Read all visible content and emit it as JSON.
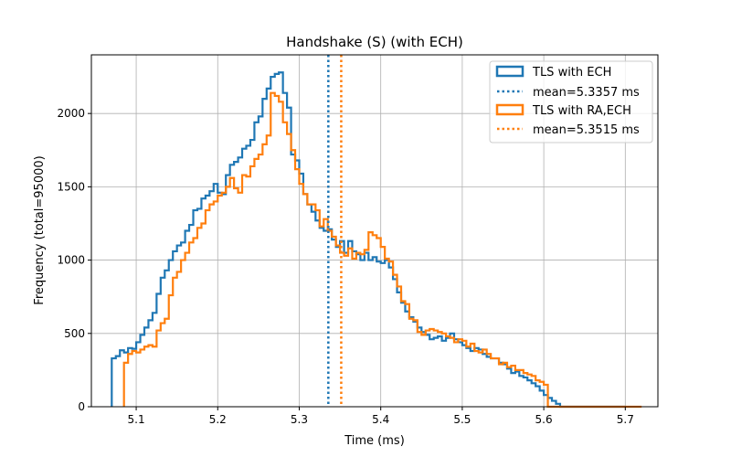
{
  "chart_data": {
    "type": "histogram-step",
    "title": "Handshake (S) (with ECH)",
    "xlabel": "Time (ms)",
    "ylabel": "Frequency (total=95000)",
    "xlim": [
      5.045,
      5.74
    ],
    "ylim": [
      0,
      2400
    ],
    "xticks": [
      5.1,
      5.2,
      5.3,
      5.4,
      5.5,
      5.6,
      5.7
    ],
    "yticks": [
      0,
      500,
      1000,
      1500,
      2000
    ],
    "grid": true,
    "legend": "top-right",
    "series": [
      {
        "name": "TLS with ECH",
        "color": "#1f77b4",
        "edges": [
          5.07,
          5.075,
          5.08,
          5.085,
          5.09,
          5.095,
          5.1,
          5.105,
          5.11,
          5.115,
          5.12,
          5.125,
          5.13,
          5.135,
          5.14,
          5.145,
          5.15,
          5.155,
          5.16,
          5.165,
          5.17,
          5.175,
          5.18,
          5.185,
          5.19,
          5.195,
          5.2,
          5.205,
          5.21,
          5.215,
          5.22,
          5.225,
          5.23,
          5.235,
          5.24,
          5.245,
          5.25,
          5.255,
          5.26,
          5.265,
          5.27,
          5.275,
          5.28,
          5.285,
          5.29,
          5.295,
          5.3,
          5.305,
          5.31,
          5.315,
          5.32,
          5.325,
          5.33,
          5.335,
          5.34,
          5.345,
          5.35,
          5.355,
          5.36,
          5.365,
          5.37,
          5.375,
          5.38,
          5.385,
          5.39,
          5.395,
          5.4,
          5.405,
          5.41,
          5.415,
          5.42,
          5.425,
          5.43,
          5.435,
          5.44,
          5.445,
          5.45,
          5.455,
          5.46,
          5.465,
          5.47,
          5.475,
          5.48,
          5.485,
          5.49,
          5.495,
          5.5,
          5.505,
          5.51,
          5.515,
          5.52,
          5.525,
          5.53,
          5.535,
          5.54,
          5.545,
          5.55,
          5.555,
          5.56,
          5.565,
          5.57,
          5.575,
          5.58,
          5.585,
          5.59,
          5.595,
          5.6,
          5.605,
          5.61,
          5.615,
          5.62,
          5.625,
          5.63,
          5.635,
          5.64,
          5.645,
          5.65,
          5.655,
          5.66,
          5.665,
          5.67,
          5.675,
          5.68,
          5.685,
          5.69,
          5.695,
          5.7
        ],
        "counts": [
          330,
          345,
          385,
          370,
          400,
          395,
          440,
          490,
          540,
          590,
          640,
          770,
          880,
          930,
          1000,
          1060,
          1100,
          1120,
          1200,
          1240,
          1340,
          1350,
          1420,
          1440,
          1470,
          1520,
          1460,
          1450,
          1580,
          1650,
          1670,
          1700,
          1760,
          1780,
          1820,
          1940,
          1980,
          2100,
          2170,
          2250,
          2270,
          2280,
          2140,
          2040,
          1720,
          1680,
          1590,
          1450,
          1380,
          1330,
          1270,
          1220,
          1200,
          1210,
          1140,
          1090,
          1130,
          1050,
          1130,
          1060,
          1040,
          1000,
          1050,
          1000,
          1020,
          990,
          980,
          1000,
          950,
          870,
          780,
          710,
          650,
          610,
          580,
          540,
          510,
          490,
          460,
          470,
          480,
          450,
          470,
          500,
          460,
          440,
          420,
          400,
          380,
          400,
          390,
          360,
          340,
          330,
          330,
          300,
          290,
          260,
          230,
          240,
          210,
          200,
          180,
          160,
          140,
          110,
          80,
          60,
          40,
          20,
          0,
          0,
          0,
          0,
          0,
          0,
          0,
          0,
          0,
          0,
          0,
          0,
          0,
          0,
          0,
          0
        ]
      },
      {
        "name": "TLS with RA,ECH",
        "color": "#ff7f0e",
        "edges": [
          5.085,
          5.09,
          5.095,
          5.1,
          5.105,
          5.11,
          5.115,
          5.12,
          5.125,
          5.13,
          5.135,
          5.14,
          5.145,
          5.15,
          5.155,
          5.16,
          5.165,
          5.17,
          5.175,
          5.18,
          5.185,
          5.19,
          5.195,
          5.2,
          5.205,
          5.21,
          5.215,
          5.22,
          5.225,
          5.23,
          5.235,
          5.24,
          5.245,
          5.25,
          5.255,
          5.26,
          5.265,
          5.27,
          5.275,
          5.28,
          5.285,
          5.29,
          5.295,
          5.3,
          5.305,
          5.31,
          5.315,
          5.32,
          5.325,
          5.33,
          5.335,
          5.34,
          5.345,
          5.35,
          5.355,
          5.36,
          5.365,
          5.37,
          5.375,
          5.38,
          5.385,
          5.39,
          5.395,
          5.4,
          5.405,
          5.41,
          5.415,
          5.42,
          5.425,
          5.43,
          5.435,
          5.44,
          5.445,
          5.45,
          5.455,
          5.46,
          5.465,
          5.47,
          5.475,
          5.48,
          5.485,
          5.49,
          5.495,
          5.5,
          5.505,
          5.51,
          5.515,
          5.52,
          5.525,
          5.53,
          5.535,
          5.54,
          5.545,
          5.55,
          5.555,
          5.56,
          5.565,
          5.57,
          5.575,
          5.58,
          5.585,
          5.59,
          5.595,
          5.6,
          5.605,
          5.61,
          5.615,
          5.62,
          5.625,
          5.63,
          5.635,
          5.64,
          5.645,
          5.65,
          5.655,
          5.66,
          5.665,
          5.67,
          5.675,
          5.68,
          5.685,
          5.69,
          5.695,
          5.7,
          5.705,
          5.71,
          5.715,
          5.72
        ],
        "counts": [
          300,
          360,
          380,
          370,
          390,
          410,
          420,
          410,
          520,
          570,
          600,
          760,
          880,
          920,
          1000,
          1050,
          1120,
          1150,
          1220,
          1250,
          1340,
          1380,
          1400,
          1440,
          1460,
          1500,
          1560,
          1490,
          1460,
          1580,
          1570,
          1640,
          1690,
          1720,
          1790,
          1850,
          2140,
          2120,
          2080,
          1940,
          1860,
          1750,
          1620,
          1520,
          1450,
          1380,
          1380,
          1340,
          1230,
          1280,
          1200,
          1160,
          1100,
          1050,
          1030,
          1080,
          1010,
          1050,
          1040,
          1070,
          1190,
          1170,
          1150,
          1090,
          1010,
          990,
          900,
          820,
          720,
          700,
          600,
          590,
          510,
          490,
          520,
          530,
          520,
          510,
          500,
          480,
          470,
          440,
          460,
          450,
          410,
          430,
          380,
          370,
          390,
          360,
          330,
          330,
          290,
          300,
          270,
          280,
          250,
          250,
          230,
          220,
          210,
          180,
          170,
          150,
          0,
          0,
          0,
          0,
          0,
          0,
          0,
          0,
          0,
          0,
          0,
          0,
          0,
          0,
          0,
          0,
          0,
          0,
          0,
          0,
          0,
          0,
          0,
          0
        ]
      }
    ],
    "means": [
      {
        "name": "mean=5.3357 ms",
        "value": 5.3357,
        "color": "#1f77b4"
      },
      {
        "name": "mean=5.3515 ms",
        "value": 5.3515,
        "color": "#ff7f0e"
      }
    ]
  }
}
